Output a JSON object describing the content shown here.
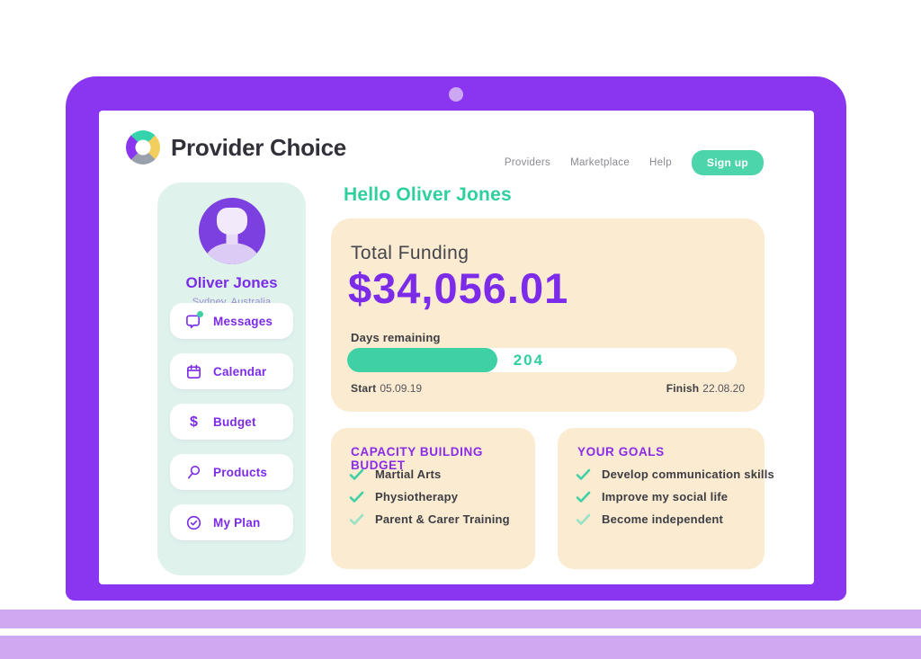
{
  "header": {
    "brand": "Provider Choice",
    "nav": [
      {
        "label": "Providers"
      },
      {
        "label": "Marketplace"
      },
      {
        "label": "Help"
      }
    ],
    "signup_label": "Sign up"
  },
  "sidebar": {
    "name": "Oliver Jones",
    "location": "Sydney, Australia",
    "items": [
      {
        "icon": "messages-icon",
        "label": "Messages"
      },
      {
        "icon": "calendar-icon",
        "label": "Calendar"
      },
      {
        "icon": "dollar-icon",
        "label": "Budget"
      },
      {
        "icon": "search-icon",
        "label": "Products"
      },
      {
        "icon": "check-circle-icon",
        "label": "My Plan"
      }
    ]
  },
  "main": {
    "greeting": "Hello Oliver Jones",
    "funding": {
      "title": "Total Funding",
      "amount": "$34,056.01",
      "days_label": "Days remaining",
      "days_value": "204",
      "progress_percent": 38.5,
      "start_label": "Start",
      "start_value": "05.09.19",
      "finish_label": "Finish",
      "finish_value": "22.08.20"
    },
    "cards": [
      {
        "title": "CAPACITY BUILDING BUDGET",
        "items": [
          "Martial Arts",
          "Physiotherapy",
          "Parent & Carer Training"
        ]
      },
      {
        "title": "YOUR GOALS",
        "items": [
          "Develop communication skills",
          "Improve my social life",
          "Become independent"
        ]
      }
    ]
  },
  "colors": {
    "frame_purple": "#8A35F0",
    "accent_purple": "#7C2BE9",
    "heading_purple": "#8B2BE8",
    "accent_green": "#3FD1A5",
    "signup_green": "#4CD5AA",
    "sidebar_mint": "#DFF3EC",
    "card_cream": "#FAEBD1",
    "light_purple": "#CEA9F2"
  }
}
